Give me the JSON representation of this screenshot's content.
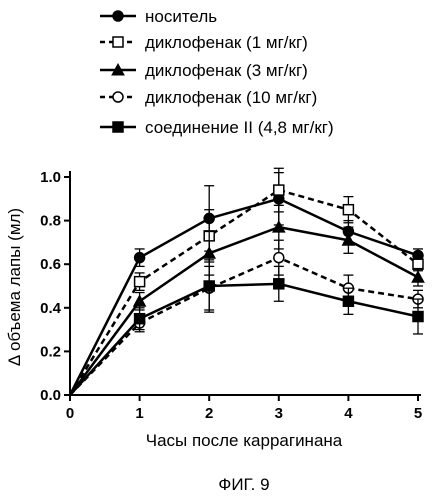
{
  "chart_data": {
    "type": "line",
    "x": [
      0,
      1,
      2,
      3,
      4,
      5
    ],
    "xlabel": "Часы после каррагинана",
    "ylabel": "Δ объема лапы (мл)",
    "xlim": [
      0,
      5
    ],
    "ylim": [
      0,
      1.0
    ],
    "x_ticks": [
      "0",
      "1",
      "2",
      "3",
      "4",
      "5"
    ],
    "y_ticks": [
      "0.0",
      "0.2",
      "0.4",
      "0.6",
      "0.8",
      "1.0"
    ],
    "grid": false,
    "legend_position": "top",
    "series": [
      {
        "name": "носитель",
        "marker": "circle-filled",
        "line": "solid",
        "values": [
          0,
          0.63,
          0.81,
          0.9,
          0.75,
          0.64
        ],
        "errors": [
          0,
          0.04,
          0.15,
          0.12,
          0.05,
          0.03
        ]
      },
      {
        "name": "диклофенак (1 мг/кг)",
        "marker": "square-open",
        "line": "dashed",
        "values": [
          0,
          0.52,
          0.73,
          0.94,
          0.85,
          0.6
        ],
        "errors": [
          0,
          0.04,
          0.12,
          0.1,
          0.06,
          0.03
        ]
      },
      {
        "name": "диклофенак (3 мг/кг)",
        "marker": "triangle-filled",
        "line": "solid",
        "values": [
          0,
          0.43,
          0.65,
          0.77,
          0.71,
          0.54
        ],
        "errors": [
          0,
          0.04,
          0.1,
          0.1,
          0.06,
          0.04
        ]
      },
      {
        "name": "диклофенак (10 мг/кг)",
        "marker": "circle-open",
        "line": "dashed",
        "values": [
          0,
          0.33,
          0.49,
          0.63,
          0.49,
          0.44
        ],
        "errors": [
          0,
          0.04,
          0.1,
          0.08,
          0.06,
          0.04
        ]
      },
      {
        "name": "соединение II (4,8 мг/кг)",
        "marker": "square-filled",
        "line": "solid",
        "values": [
          0,
          0.35,
          0.5,
          0.51,
          0.43,
          0.36
        ],
        "errors": [
          0,
          0.05,
          0.12,
          0.08,
          0.06,
          0.08
        ]
      }
    ]
  },
  "figure": {
    "caption": "ФИГ. 9"
  }
}
